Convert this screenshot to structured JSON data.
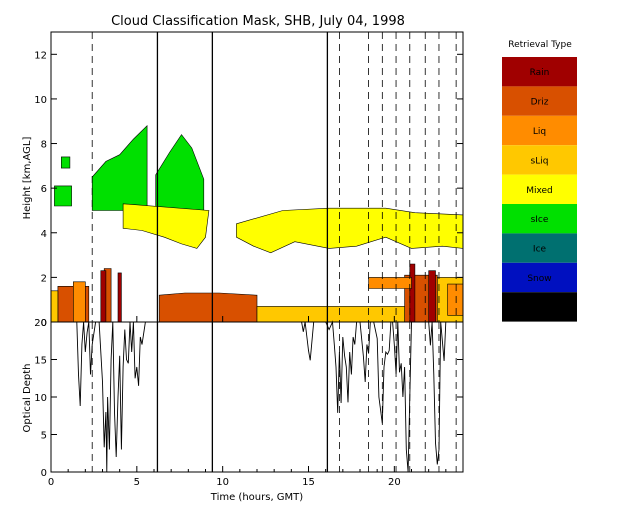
{
  "chart_data": [
    {
      "type": "heatmap",
      "title": "Cloud Classification Mask, SHB, July 04, 1998",
      "xlabel": "",
      "ylabel": "Height [km,AGL]",
      "xlim": [
        0,
        24
      ],
      "ylim": [
        0,
        13
      ],
      "y_ticks": [
        "0",
        "2",
        "4",
        "6",
        "8",
        "10",
        "12"
      ],
      "legend_title": "Retrieval Type",
      "legend_position": "right",
      "categories": [
        {
          "name": "Rain",
          "color": "#a00000"
        },
        {
          "name": "Driz",
          "color": "#d85000"
        },
        {
          "name": "Liq",
          "color": "#ff8c00"
        },
        {
          "name": "sLiq",
          "color": "#ffc800"
        },
        {
          "name": "Mixed",
          "color": "#ffff00"
        },
        {
          "name": "sIce",
          "color": "#00e000"
        },
        {
          "name": "Ice",
          "color": "#007070"
        },
        {
          "name": "Snow",
          "color": "#0010c0"
        },
        {
          "name": "Uncrt",
          "color": "#000000"
        }
      ],
      "regions": [
        {
          "class": "sIce",
          "x": [
            0.2,
            1.2,
            1.2,
            0.2
          ],
          "y": [
            5.2,
            5.2,
            6.1,
            6.1
          ]
        },
        {
          "class": "sIce",
          "x": [
            2.4,
            5.6,
            5.6,
            4.8,
            4.0,
            3.2,
            2.4
          ],
          "y": [
            5.0,
            5.0,
            8.8,
            8.2,
            7.5,
            7.2,
            6.5
          ]
        },
        {
          "class": "sIce",
          "x": [
            6.1,
            8.9,
            8.9,
            8.2,
            7.6,
            6.9,
            6.1
          ],
          "y": [
            5.0,
            5.0,
            6.4,
            7.8,
            8.4,
            7.6,
            6.6
          ]
        },
        {
          "class": "sIce",
          "x": [
            0.6,
            1.1,
            1.1,
            0.6
          ],
          "y": [
            6.9,
            6.9,
            7.4,
            7.4
          ]
        },
        {
          "class": "Mixed",
          "x": [
            4.2,
            9.2,
            9.0,
            8.5,
            7.6,
            6.6,
            5.3,
            4.2
          ],
          "y": [
            5.3,
            5.0,
            3.8,
            3.3,
            3.5,
            3.8,
            4.1,
            4.2
          ]
        },
        {
          "class": "Mixed",
          "x": [
            10.8,
            13.5,
            16.2,
            19.5,
            21.2,
            24.0,
            24.0,
            22.8,
            21.0,
            19.5,
            17.8,
            16.2,
            14.2,
            12.8,
            11.8,
            10.8
          ],
          "y": [
            4.4,
            5.0,
            5.1,
            5.1,
            4.9,
            4.8,
            3.3,
            3.4,
            3.3,
            3.8,
            3.4,
            3.3,
            3.6,
            3.1,
            3.4,
            3.8
          ]
        },
        {
          "class": "Driz",
          "x": [
            0.4,
            2.2,
            2.2,
            0.4
          ],
          "y": [
            0.0,
            0.0,
            1.6,
            1.6
          ]
        },
        {
          "class": "Driz",
          "x": [
            3.1,
            3.5,
            3.5,
            3.1
          ],
          "y": [
            0.0,
            0.0,
            2.4,
            2.4
          ]
        },
        {
          "class": "Driz",
          "x": [
            6.3,
            12.0,
            12.0,
            9.8,
            7.8,
            6.3
          ],
          "y": [
            0.0,
            0.0,
            1.2,
            1.3,
            1.3,
            1.2
          ]
        },
        {
          "class": "Driz",
          "x": [
            20.6,
            22.5,
            22.5,
            20.6
          ],
          "y": [
            0.0,
            0.0,
            2.1,
            2.1
          ]
        },
        {
          "class": "Rain",
          "x": [
            2.9,
            3.2,
            3.2,
            2.9
          ],
          "y": [
            0.0,
            0.0,
            2.3,
            2.3
          ]
        },
        {
          "class": "Rain",
          "x": [
            3.9,
            4.1,
            4.1,
            3.9
          ],
          "y": [
            0.0,
            0.0,
            2.2,
            2.2
          ]
        },
        {
          "class": "Rain",
          "x": [
            20.9,
            21.2,
            21.2,
            20.9
          ],
          "y": [
            0.0,
            0.0,
            2.6,
            2.6
          ]
        },
        {
          "class": "Rain",
          "x": [
            22.0,
            22.4,
            22.4,
            22.0
          ],
          "y": [
            0.0,
            0.0,
            2.3,
            2.3
          ]
        },
        {
          "class": "sLiq",
          "x": [
            0.0,
            0.4,
            0.4,
            0.0
          ],
          "y": [
            0.0,
            0.0,
            1.4,
            1.4
          ]
        },
        {
          "class": "sLiq",
          "x": [
            12.0,
            20.6,
            20.6,
            12.0
          ],
          "y": [
            0.0,
            0.0,
            0.7,
            0.7
          ]
        },
        {
          "class": "sLiq",
          "x": [
            22.5,
            24.0,
            24.0,
            22.5
          ],
          "y": [
            0.0,
            0.0,
            2.0,
            2.0
          ]
        },
        {
          "class": "Liq",
          "x": [
            1.3,
            2.0,
            2.0,
            1.3
          ],
          "y": [
            0.0,
            0.0,
            1.8,
            1.8
          ]
        },
        {
          "class": "Liq",
          "x": [
            18.5,
            21.0,
            21.0,
            18.5
          ],
          "y": [
            1.5,
            1.5,
            2.0,
            2.0
          ]
        },
        {
          "class": "Liq",
          "x": [
            23.1,
            24.0,
            24.0,
            23.1
          ],
          "y": [
            0.3,
            0.3,
            1.7,
            1.7
          ]
        }
      ],
      "vertical_lines": [
        {
          "x": 2.4,
          "style": "dashed"
        },
        {
          "x": 6.2,
          "style": "solid"
        },
        {
          "x": 9.4,
          "style": "solid"
        },
        {
          "x": 16.1,
          "style": "solid"
        },
        {
          "x": 16.8,
          "style": "dashed"
        },
        {
          "x": 18.5,
          "style": "dashed"
        },
        {
          "x": 19.3,
          "style": "dashed"
        },
        {
          "x": 20.1,
          "style": "dashed"
        },
        {
          "x": 20.9,
          "style": "dashed"
        },
        {
          "x": 21.8,
          "style": "dashed"
        },
        {
          "x": 22.6,
          "style": "dashed"
        },
        {
          "x": 23.6,
          "style": "dashed"
        }
      ]
    },
    {
      "type": "line",
      "title": "",
      "xlabel": "Time (hours, GMT)",
      "ylabel": "Optical Depth",
      "xlim": [
        0,
        24
      ],
      "ylim": [
        0,
        20
      ],
      "x_ticks": [
        "0",
        "5",
        "10",
        "15",
        "20"
      ],
      "y_ticks": [
        "0",
        "5",
        "10",
        "15",
        "20"
      ],
      "series": [
        {
          "x": [
            0.0,
            1.5,
            1.6,
            1.7,
            1.8,
            1.9,
            2.0,
            2.1,
            2.2,
            2.3,
            2.4,
            2.6,
            2.8,
            3.0,
            3.1,
            3.2,
            3.25,
            3.3,
            3.4,
            3.5,
            3.6,
            3.7,
            3.8,
            3.9,
            4.0,
            4.1,
            4.2,
            4.3,
            4.4,
            4.5,
            4.6,
            4.7,
            4.8,
            4.9,
            5.0,
            5.1,
            5.2,
            5.3,
            5.5,
            5.6,
            14.6,
            14.7,
            14.8,
            15.0,
            15.1,
            15.3,
            15.4,
            16.0,
            16.2,
            16.4,
            16.5,
            16.6,
            16.7,
            16.8,
            16.9,
            17.0,
            17.1,
            17.2,
            17.3,
            17.4,
            17.5,
            17.6,
            17.7,
            17.8,
            18.0,
            18.2,
            18.3,
            18.4,
            18.5,
            18.6,
            18.8,
            19.0,
            19.1,
            19.3,
            19.4,
            19.5,
            19.6,
            19.7,
            19.8,
            19.9,
            20.0,
            20.1,
            20.2,
            20.3,
            20.4,
            20.5,
            20.6,
            20.7,
            20.8,
            21.0,
            22.0,
            22.1,
            22.2,
            22.3,
            22.4,
            22.5,
            22.6,
            22.7,
            22.9,
            23.0,
            24.0
          ],
          "y": [
            20,
            20,
            13,
            8.8,
            17,
            20,
            16,
            18.6,
            20,
            13,
            17,
            20,
            20,
            12,
            3.3,
            8,
            0,
            10,
            3,
            15,
            20,
            8,
            2,
            10,
            15.5,
            3,
            14,
            19,
            15,
            14.5,
            20,
            16,
            20,
            12.5,
            14,
            11.5,
            18,
            17,
            20,
            20,
            20,
            18.7,
            20,
            16.2,
            14.9,
            20,
            20,
            20,
            19,
            20,
            17,
            14,
            7.9,
            16,
            9.2,
            18,
            15.5,
            14,
            9.3,
            16,
            13,
            18,
            17,
            20,
            20,
            15.4,
            12,
            17,
            15.8,
            20,
            20,
            17.8,
            10,
            6.5,
            14,
            16,
            15.7,
            16.2,
            20,
            20,
            17,
            13.1,
            20,
            13.3,
            14.5,
            10,
            14,
            3,
            0,
            20,
            20,
            16.9,
            20,
            13,
            3.9,
            1,
            3,
            20,
            14.8,
            20,
            20
          ]
        }
      ]
    }
  ]
}
